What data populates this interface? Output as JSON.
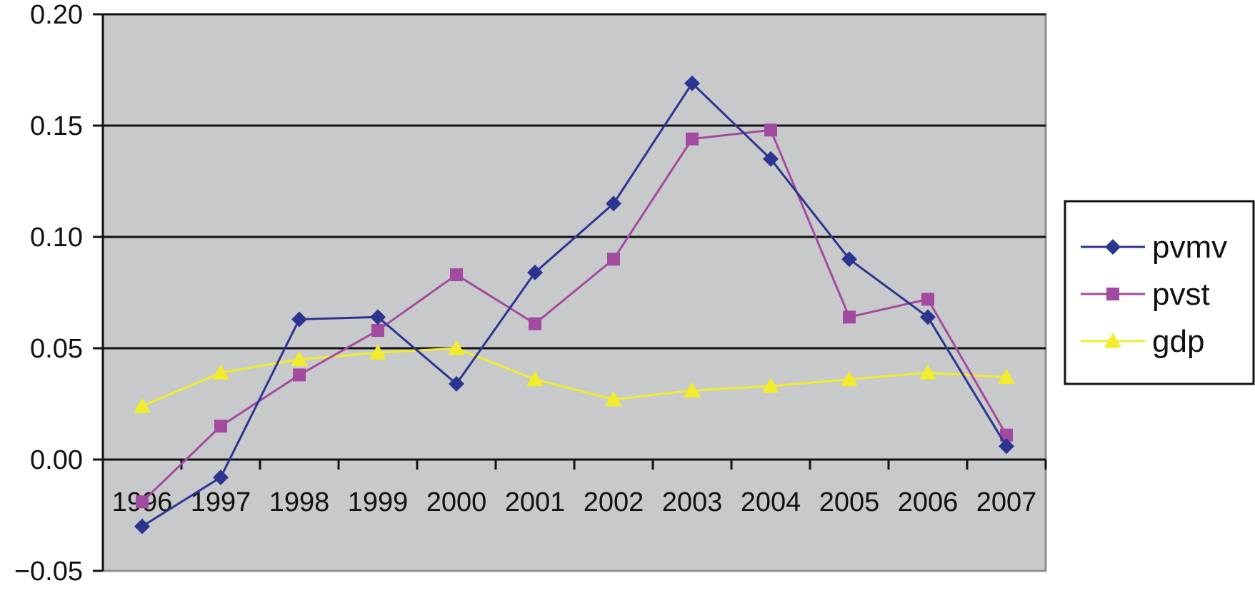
{
  "chart_data": {
    "type": "line",
    "title": "",
    "xlabel": "",
    "ylabel": "",
    "categories": [
      "1996",
      "1997",
      "1998",
      "1999",
      "2000",
      "2001",
      "2002",
      "2003",
      "2004",
      "2005",
      "2006",
      "2007"
    ],
    "ylim": [
      -0.05,
      0.2
    ],
    "yticks": [
      0.2,
      0.15,
      0.1,
      0.05,
      0.0,
      -0.05
    ],
    "ytick_labels": [
      "0.20",
      "0.15",
      "0.10",
      "0.05",
      "0.00",
      "−0.05"
    ],
    "grid": "horizontal major gridlines",
    "plot_background": "#c8c9cb",
    "legend_position": "right",
    "series": [
      {
        "name": "pvmv",
        "color": "#2b3590",
        "marker": "diamond",
        "values": [
          -0.03,
          -0.008,
          0.063,
          0.064,
          0.034,
          0.084,
          0.115,
          0.169,
          0.135,
          0.09,
          0.064,
          0.006
        ]
      },
      {
        "name": "pvst",
        "color": "#a24a9f",
        "marker": "square",
        "values": [
          -0.019,
          0.015,
          0.038,
          0.058,
          0.083,
          0.061,
          0.09,
          0.144,
          0.148,
          0.064,
          0.072,
          0.011
        ]
      },
      {
        "name": "gdp",
        "color": "#f2ec2f",
        "marker": "triangle",
        "values": [
          0.024,
          0.039,
          0.045,
          0.048,
          0.05,
          0.036,
          0.027,
          0.031,
          0.033,
          0.036,
          0.039,
          0.037
        ]
      }
    ]
  }
}
